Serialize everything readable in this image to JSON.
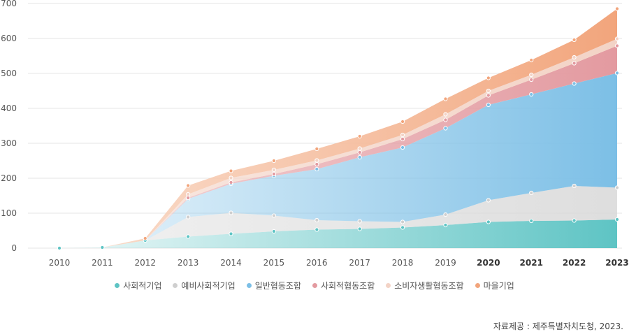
{
  "chart_data": {
    "type": "area",
    "stacked": true,
    "x": [
      "2010",
      "2011",
      "2012",
      "2013",
      "2014",
      "2015",
      "2016",
      "2017",
      "2018",
      "2019",
      "2020",
      "2021",
      "2022",
      "2023"
    ],
    "bold_ticks": [
      "2020",
      "2021",
      "2022",
      "2023"
    ],
    "ylim": [
      0,
      700
    ],
    "yticks": [
      0,
      100,
      200,
      300,
      400,
      500,
      600,
      700
    ],
    "series": [
      {
        "name": "사회적기업",
        "color": "#5ec4c4",
        "values": [
          0,
          2,
          22,
          33,
          41,
          48,
          53,
          55,
          59,
          66,
          75,
          78,
          79,
          82
        ]
      },
      {
        "name": "예비사회적기업",
        "color": "#cfcfcf",
        "values": [
          0,
          0,
          0,
          56,
          60,
          45,
          27,
          22,
          16,
          30,
          62,
          80,
          99,
          91
        ]
      },
      {
        "name": "일반협동조합",
        "color": "#7cbfe6",
        "values": [
          0,
          0,
          0,
          52,
          83,
          114,
          146,
          183,
          213,
          247,
          273,
          282,
          293,
          328
        ]
      },
      {
        "name": "사회적협동조합",
        "color": "#e39aa0",
        "values": [
          0,
          0,
          0,
          3,
          4,
          5,
          14,
          14,
          24,
          24,
          27,
          42,
          58,
          78
        ]
      },
      {
        "name": "소비자생활협동조합",
        "color": "#f3d3c6",
        "values": [
          0,
          0,
          0,
          10,
          13,
          12,
          11,
          11,
          12,
          16,
          13,
          14,
          17,
          20
        ]
      },
      {
        "name": "마을기업",
        "color": "#f2a57c",
        "values": [
          0,
          0,
          6,
          25,
          20,
          26,
          33,
          35,
          38,
          44,
          37,
          42,
          50,
          86
        ]
      }
    ]
  },
  "source": "자료제공 : 제주특별자치도청, 2023."
}
